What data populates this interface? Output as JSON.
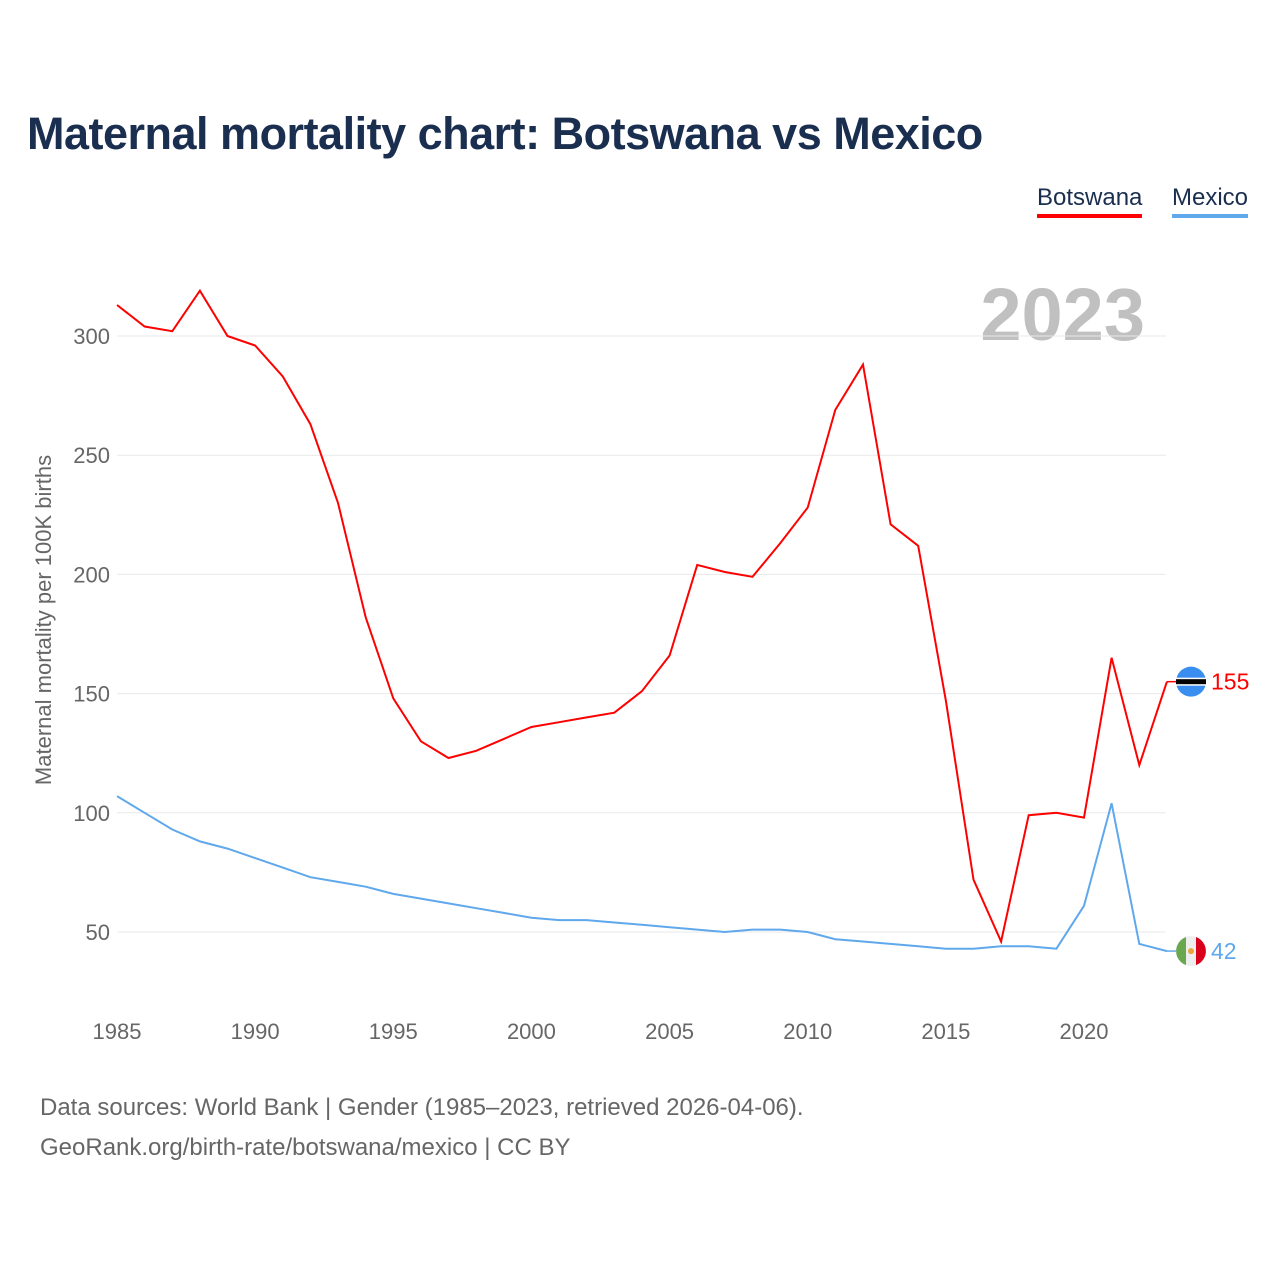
{
  "chart_data": {
    "type": "line",
    "title": "Maternal mortality chart: Botswana vs Mexico",
    "ylabel": "Maternal mortality per 100K births",
    "xlabel": "",
    "year_label": "2023",
    "xlim": [
      1985,
      2023
    ],
    "ylim": [
      25,
      330
    ],
    "x_ticks": [
      1985,
      1990,
      1995,
      2000,
      2005,
      2010,
      2015,
      2020
    ],
    "y_ticks": [
      50,
      100,
      150,
      200,
      250,
      300
    ],
    "grid": true,
    "legend_position": "top-right",
    "x": [
      1985,
      1986,
      1987,
      1988,
      1989,
      1990,
      1991,
      1992,
      1993,
      1994,
      1995,
      1996,
      1997,
      1998,
      1999,
      2000,
      2001,
      2002,
      2003,
      2004,
      2005,
      2006,
      2007,
      2008,
      2009,
      2010,
      2011,
      2012,
      2013,
      2014,
      2015,
      2016,
      2017,
      2018,
      2019,
      2020,
      2021,
      2022,
      2023
    ],
    "series": [
      {
        "name": "Botswana",
        "color": "#ff0000",
        "end_label": "155",
        "values": [
          313,
          304,
          302,
          319,
          300,
          296,
          283,
          263,
          230,
          182,
          148,
          130,
          123,
          126,
          131,
          136,
          138,
          140,
          142,
          151,
          166,
          204,
          201,
          199,
          213,
          228,
          269,
          288,
          221,
          212,
          147,
          72,
          46,
          99,
          100,
          98,
          165,
          120,
          155
        ]
      },
      {
        "name": "Mexico",
        "color": "#5fa8ec",
        "end_label": "42",
        "values": [
          107,
          100,
          93,
          88,
          85,
          81,
          77,
          73,
          71,
          69,
          66,
          64,
          62,
          60,
          58,
          56,
          55,
          55,
          54,
          53,
          52,
          51,
          50,
          51,
          51,
          50,
          47,
          46,
          45,
          44,
          43,
          43,
          44,
          44,
          43,
          61,
          104,
          45,
          42
        ]
      }
    ]
  },
  "footer": {
    "line1": "Data sources: World Bank | Gender (1985–2023, retrieved 2026-04-06).",
    "line2": "GeoRank.org/birth-rate/botswana/mexico | CC BY"
  }
}
